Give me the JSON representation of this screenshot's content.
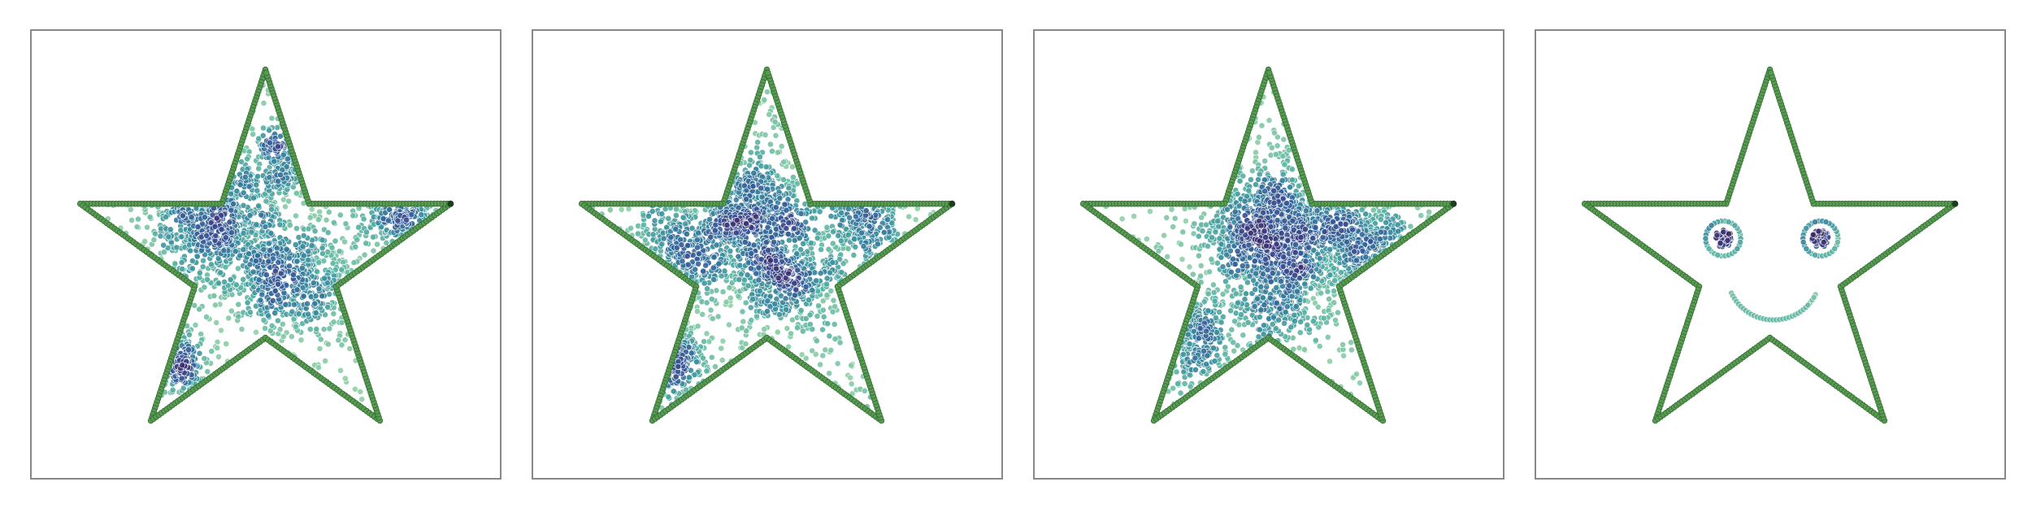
{
  "figure": {
    "panel_count": 4
  },
  "colors": {
    "frame": "#888888",
    "background": "#ffffff",
    "outline_fill": "#5a9a52",
    "outline_edge": "#2e6e30",
    "outline_end_marker": "#1e3d1f",
    "point_colormap": [
      "#8fd0a6",
      "#5bb3a2",
      "#3a8f9e",
      "#33669a",
      "#3a4a8e",
      "#3b2a6a"
    ]
  },
  "chart_data": [
    {
      "type": "scatter",
      "title": "",
      "xlabel": "",
      "ylabel": "",
      "xlim": [
        -1.2,
        1.2
      ],
      "ylim": [
        -1.1,
        1.2
      ],
      "grid": false,
      "outline": {
        "shape": "star",
        "points": 5,
        "vertices": [
          [
            0.0,
            1.0
          ],
          [
            -0.224,
            0.309
          ],
          [
            -0.951,
            0.309
          ],
          [
            -0.363,
            -0.118
          ],
          [
            -0.588,
            -0.809
          ],
          [
            0.0,
            -0.382
          ],
          [
            0.588,
            -0.809
          ],
          [
            0.363,
            -0.118
          ],
          [
            0.951,
            0.309
          ],
          [
            0.224,
            0.309
          ]
        ]
      },
      "clusters": [
        {
          "center": [
            -0.25,
            0.21
          ],
          "spread": 0.17,
          "count": 650
        },
        {
          "center": [
            0.16,
            -0.07
          ],
          "spread": 0.15,
          "count": 500
        },
        {
          "center": [
            -0.5,
            -0.5
          ],
          "spread": 0.09,
          "count": 170
        },
        {
          "center": [
            0.68,
            0.26
          ],
          "spread": 0.09,
          "count": 180
        },
        {
          "center": [
            0.12,
            0.55
          ],
          "spread": 0.1,
          "count": 160
        }
      ],
      "background_points": 300
    },
    {
      "type": "scatter",
      "title": "",
      "xlabel": "",
      "ylabel": "",
      "xlim": [
        -1.2,
        1.2
      ],
      "ylim": [
        -1.1,
        1.2
      ],
      "grid": false,
      "outline": {
        "shape": "star",
        "points": 5,
        "vertices": [
          [
            0.0,
            1.0
          ],
          [
            -0.224,
            0.309
          ],
          [
            -0.951,
            0.309
          ],
          [
            -0.363,
            -0.118
          ],
          [
            -0.588,
            -0.809
          ],
          [
            0.0,
            -0.382
          ],
          [
            0.588,
            -0.809
          ],
          [
            0.363,
            -0.118
          ],
          [
            0.951,
            0.309
          ],
          [
            0.224,
            0.309
          ]
        ]
      },
      "clusters": [
        {
          "center": [
            -0.1,
            0.28
          ],
          "spread": 0.15,
          "count": 550
        },
        {
          "center": [
            0.1,
            -0.05
          ],
          "spread": 0.14,
          "count": 450
        },
        {
          "center": [
            -0.42,
            0.05
          ],
          "spread": 0.14,
          "count": 280
        },
        {
          "center": [
            -0.52,
            -0.5
          ],
          "spread": 0.09,
          "count": 160
        },
        {
          "center": [
            0.5,
            0.22
          ],
          "spread": 0.1,
          "count": 200
        }
      ],
      "background_points": 350
    },
    {
      "type": "scatter",
      "title": "",
      "xlabel": "",
      "ylabel": "",
      "xlim": [
        -1.2,
        1.2
      ],
      "ylim": [
        -1.1,
        1.2
      ],
      "grid": false,
      "outline": {
        "shape": "star",
        "points": 5,
        "vertices": [
          [
            0.0,
            1.0
          ],
          [
            -0.224,
            0.309
          ],
          [
            -0.951,
            0.309
          ],
          [
            -0.363,
            -0.118
          ],
          [
            -0.588,
            -0.809
          ],
          [
            0.0,
            -0.382
          ],
          [
            0.588,
            -0.809
          ],
          [
            0.363,
            -0.118
          ],
          [
            0.951,
            0.309
          ],
          [
            0.224,
            0.309
          ]
        ]
      },
      "clusters": [
        {
          "center": [
            -0.05,
            0.2
          ],
          "spread": 0.17,
          "count": 650
        },
        {
          "center": [
            0.18,
            0.06
          ],
          "spread": 0.16,
          "count": 450
        },
        {
          "center": [
            0.5,
            0.18
          ],
          "spread": 0.12,
          "count": 250
        },
        {
          "center": [
            -0.42,
            -0.36
          ],
          "spread": 0.12,
          "count": 220
        },
        {
          "center": [
            0.05,
            -0.22
          ],
          "spread": 0.12,
          "count": 200
        }
      ],
      "background_points": 300
    },
    {
      "type": "scatter",
      "title": "",
      "xlabel": "",
      "ylabel": "",
      "xlim": [
        -1.2,
        1.2
      ],
      "ylim": [
        -1.1,
        1.2
      ],
      "grid": false,
      "outline": {
        "shape": "star",
        "points": 5,
        "vertices": [
          [
            0.0,
            1.0
          ],
          [
            -0.224,
            0.309
          ],
          [
            -0.951,
            0.309
          ],
          [
            -0.363,
            -0.118
          ],
          [
            -0.588,
            -0.809
          ],
          [
            0.0,
            -0.382
          ],
          [
            0.588,
            -0.809
          ],
          [
            0.363,
            -0.118
          ],
          [
            0.951,
            0.309
          ],
          [
            0.224,
            0.309
          ]
        ]
      },
      "smiley": {
        "left_eye": {
          "center": [
            -0.24,
            0.13
          ],
          "ring_radius": 0.09,
          "pupil_radius": 0.045
        },
        "right_eye": {
          "center": [
            0.26,
            0.13
          ],
          "ring_radius": 0.09,
          "pupil_radius": 0.045
        },
        "mouth": {
          "center": [
            0.02,
            -0.05
          ],
          "radius": 0.24,
          "from_deg": 205,
          "to_deg": 335
        }
      }
    }
  ]
}
